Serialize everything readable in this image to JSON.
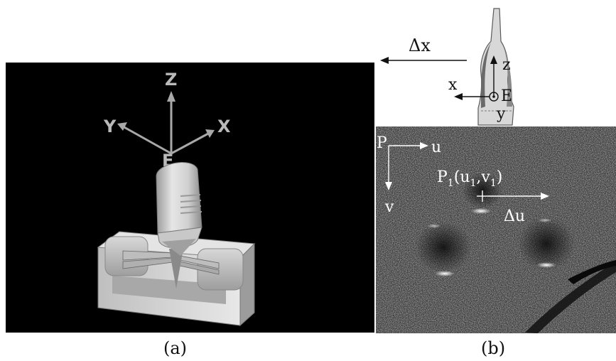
{
  "captions": {
    "a": "(a)",
    "b": "(b)"
  },
  "panel_a": {
    "axes": {
      "z": "Z",
      "y": "Y",
      "x": "X",
      "origin": "E"
    }
  },
  "panel_b_top": {
    "delta_x": "Δx",
    "z": "z",
    "x": "x",
    "origin": "E",
    "y": "y"
  },
  "panel_b_bottom": {
    "p_label": "P",
    "u": "u",
    "v": "v",
    "p1_label": "P",
    "p1_sub": "1",
    "p1_coords_open": "(u",
    "p1_coords_mid": ",v",
    "p1_coords_close": ")",
    "delta_u": "Δu"
  }
}
